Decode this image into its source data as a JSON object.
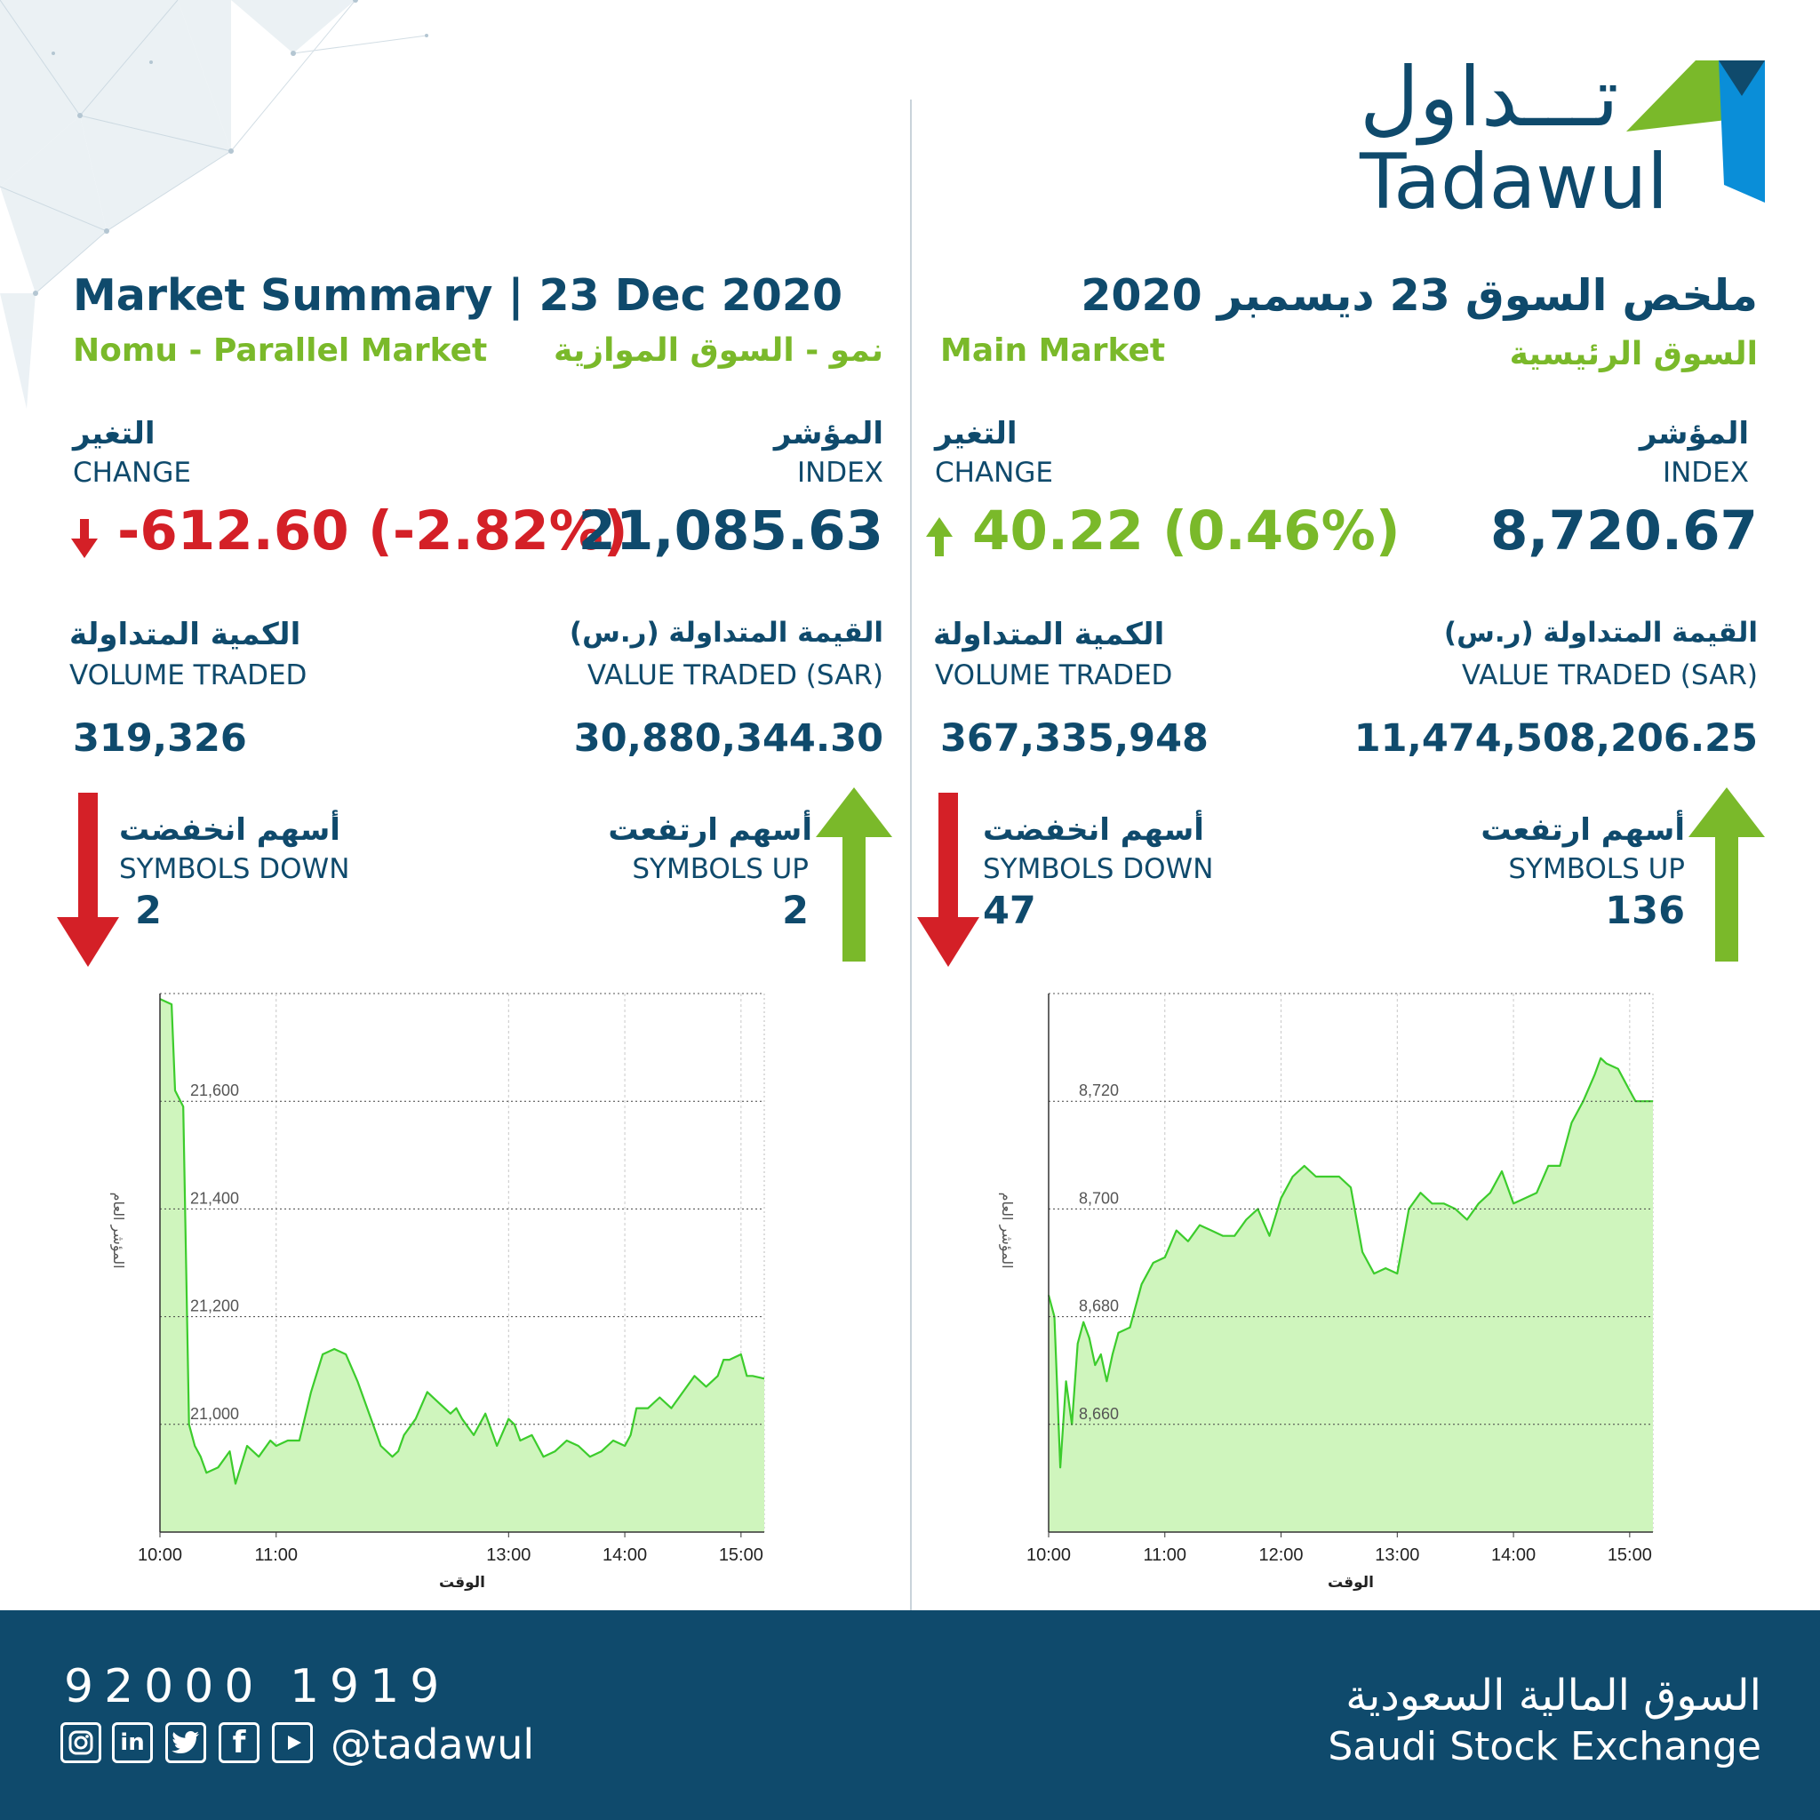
{
  "logo": {
    "arabic": "تـــداول",
    "english": "Tadawul"
  },
  "nomu": {
    "title": "Market Summary | 23 Dec 2020",
    "subtitle_en": "Nomu - Parallel Market",
    "subtitle_ar": "نمو - السوق الموازية",
    "change_label_ar": "التغير",
    "change_label_en": "CHANGE",
    "change_value": "-612.60 (-2.82%)",
    "index_label_ar": "المؤشر",
    "index_label_en": "INDEX",
    "index_value": "21,085.63",
    "volume_label_ar": "الكمية المتداولة",
    "volume_label_en": "VOLUME TRADED",
    "volume_value": "319,326",
    "value_label_ar": "القيمة المتداولة (ر.س)",
    "value_label_en": "VALUE TRADED (SAR)",
    "value_value": "30,880,344.30",
    "down_label_ar": "أسهم انخفضت",
    "down_label_en": "SYMBOLS DOWN",
    "down_count": "2",
    "up_label_ar": "أسهم ارتفعت",
    "up_label_en": "SYMBOLS UP",
    "up_count": "2"
  },
  "main": {
    "title": "ملخص السوق 23 ديسمبر 2020",
    "subtitle_en": "Main Market",
    "subtitle_ar": "السوق الرئيسية",
    "change_label_ar": "التغير",
    "change_label_en": "CHANGE",
    "change_value": "40.22 (0.46%)",
    "index_label_ar": "المؤشر",
    "index_label_en": "INDEX",
    "index_value": "8,720.67",
    "volume_label_ar": "الكمية المتداولة",
    "volume_label_en": "VOLUME TRADED",
    "volume_value": "367,335,948",
    "value_label_ar": "القيمة المتداولة (ر.س)",
    "value_label_en": "VALUE TRADED (SAR)",
    "value_value": "11,474,508,206.25",
    "down_label_ar": "أسهم انخفضت",
    "down_label_en": "SYMBOLS DOWN",
    "down_count": "47",
    "up_label_ar": "أسهم ارتفعت",
    "up_label_en": "SYMBOLS UP",
    "up_count": "136"
  },
  "footer": {
    "phone": "92000 1919",
    "handle": "@tadawul",
    "exchange_ar": "السوق المالية السعودية",
    "exchange_en": "Saudi Stock Exchange",
    "social_icons": [
      "instagram-icon",
      "linkedin-icon",
      "twitter-icon",
      "facebook-icon",
      "youtube-icon"
    ]
  },
  "colors": {
    "navy": "#0f4a6c",
    "green": "#7ab92a",
    "red": "#d42027",
    "area_fill": "#cff5bd",
    "line": "#3ccc2c"
  },
  "chart_data": [
    {
      "type": "area",
      "title": "",
      "xlabel": "الوقت",
      "ylabel": "المؤشر العام",
      "x_ticks": [
        "10:00",
        "11:00",
        "13:00",
        "14:00",
        "15:00"
      ],
      "y_ticks": [
        "21,000",
        "21,200",
        "21,400",
        "21,600"
      ],
      "ylim": [
        20800,
        21800
      ],
      "xlim": [
        10.0,
        15.2
      ],
      "grid": true,
      "series": [
        {
          "x": [
            10.0,
            10.1,
            10.13,
            10.2,
            10.25,
            10.3,
            10.35,
            10.4,
            10.5,
            10.6,
            10.65,
            10.75,
            10.85,
            10.95,
            11.0,
            11.1,
            11.2,
            11.3,
            11.4,
            11.5,
            11.6,
            11.7,
            11.8,
            11.9,
            12.0,
            12.05,
            12.1,
            12.2,
            12.3,
            12.4,
            12.5,
            12.55,
            12.6,
            12.7,
            12.8,
            12.9,
            13.0,
            13.05,
            13.1,
            13.2,
            13.3,
            13.4,
            13.5,
            13.6,
            13.7,
            13.8,
            13.9,
            14.0,
            14.05,
            14.1,
            14.2,
            14.3,
            14.4,
            14.5,
            14.6,
            14.7,
            14.8,
            14.85,
            14.9,
            15.0,
            15.05,
            15.1,
            15.2
          ],
          "y": [
            21790,
            21780,
            21620,
            21590,
            21000,
            20960,
            20940,
            20910,
            20920,
            20950,
            20890,
            20960,
            20940,
            20970,
            20960,
            20970,
            20970,
            21060,
            21130,
            21140,
            21130,
            21080,
            21020,
            20960,
            20940,
            20950,
            20980,
            21010,
            21060,
            21040,
            21020,
            21030,
            21010,
            20980,
            21020,
            20960,
            21010,
            21000,
            20970,
            20980,
            20940,
            20950,
            20970,
            20960,
            20940,
            20950,
            20970,
            20960,
            20980,
            21030,
            21030,
            21050,
            21030,
            21060,
            21090,
            21070,
            21090,
            21120,
            21120,
            21130,
            21090,
            21090,
            21085
          ]
        }
      ]
    },
    {
      "type": "area",
      "title": "",
      "xlabel": "الوقت",
      "ylabel": "المؤشر العام",
      "x_ticks": [
        "10:00",
        "11:00",
        "12:00",
        "13:00",
        "14:00",
        "15:00"
      ],
      "y_ticks": [
        "8,660",
        "8,680",
        "8,700",
        "8,720"
      ],
      "ylim": [
        8640,
        8740
      ],
      "xlim": [
        10.0,
        15.2
      ],
      "grid": true,
      "series": [
        {
          "x": [
            10.0,
            10.05,
            10.1,
            10.15,
            10.2,
            10.25,
            10.3,
            10.35,
            10.4,
            10.45,
            10.5,
            10.55,
            10.6,
            10.7,
            10.8,
            10.9,
            11.0,
            11.1,
            11.2,
            11.3,
            11.4,
            11.5,
            11.6,
            11.7,
            11.8,
            11.9,
            12.0,
            12.1,
            12.2,
            12.3,
            12.4,
            12.5,
            12.6,
            12.7,
            12.8,
            12.9,
            13.0,
            13.1,
            13.2,
            13.3,
            13.4,
            13.5,
            13.6,
            13.7,
            13.8,
            13.9,
            14.0,
            14.1,
            14.2,
            14.3,
            14.4,
            14.5,
            14.6,
            14.7,
            14.75,
            14.8,
            14.9,
            15.0,
            15.05,
            15.2
          ],
          "y": [
            8684,
            8680,
            8652,
            8668,
            8660,
            8675,
            8679,
            8676,
            8671,
            8673,
            8668,
            8673,
            8677,
            8678,
            8686,
            8690,
            8691,
            8696,
            8694,
            8697,
            8696,
            8695,
            8695,
            8698,
            8700,
            8695,
            8702,
            8706,
            8708,
            8706,
            8706,
            8706,
            8704,
            8692,
            8688,
            8689,
            8688,
            8700,
            8703,
            8701,
            8701,
            8700,
            8698,
            8701,
            8703,
            8707,
            8701,
            8702,
            8703,
            8708,
            8708,
            8716,
            8720,
            8725,
            8728,
            8727,
            8726,
            8722,
            8720,
            8720
          ]
        }
      ]
    }
  ]
}
